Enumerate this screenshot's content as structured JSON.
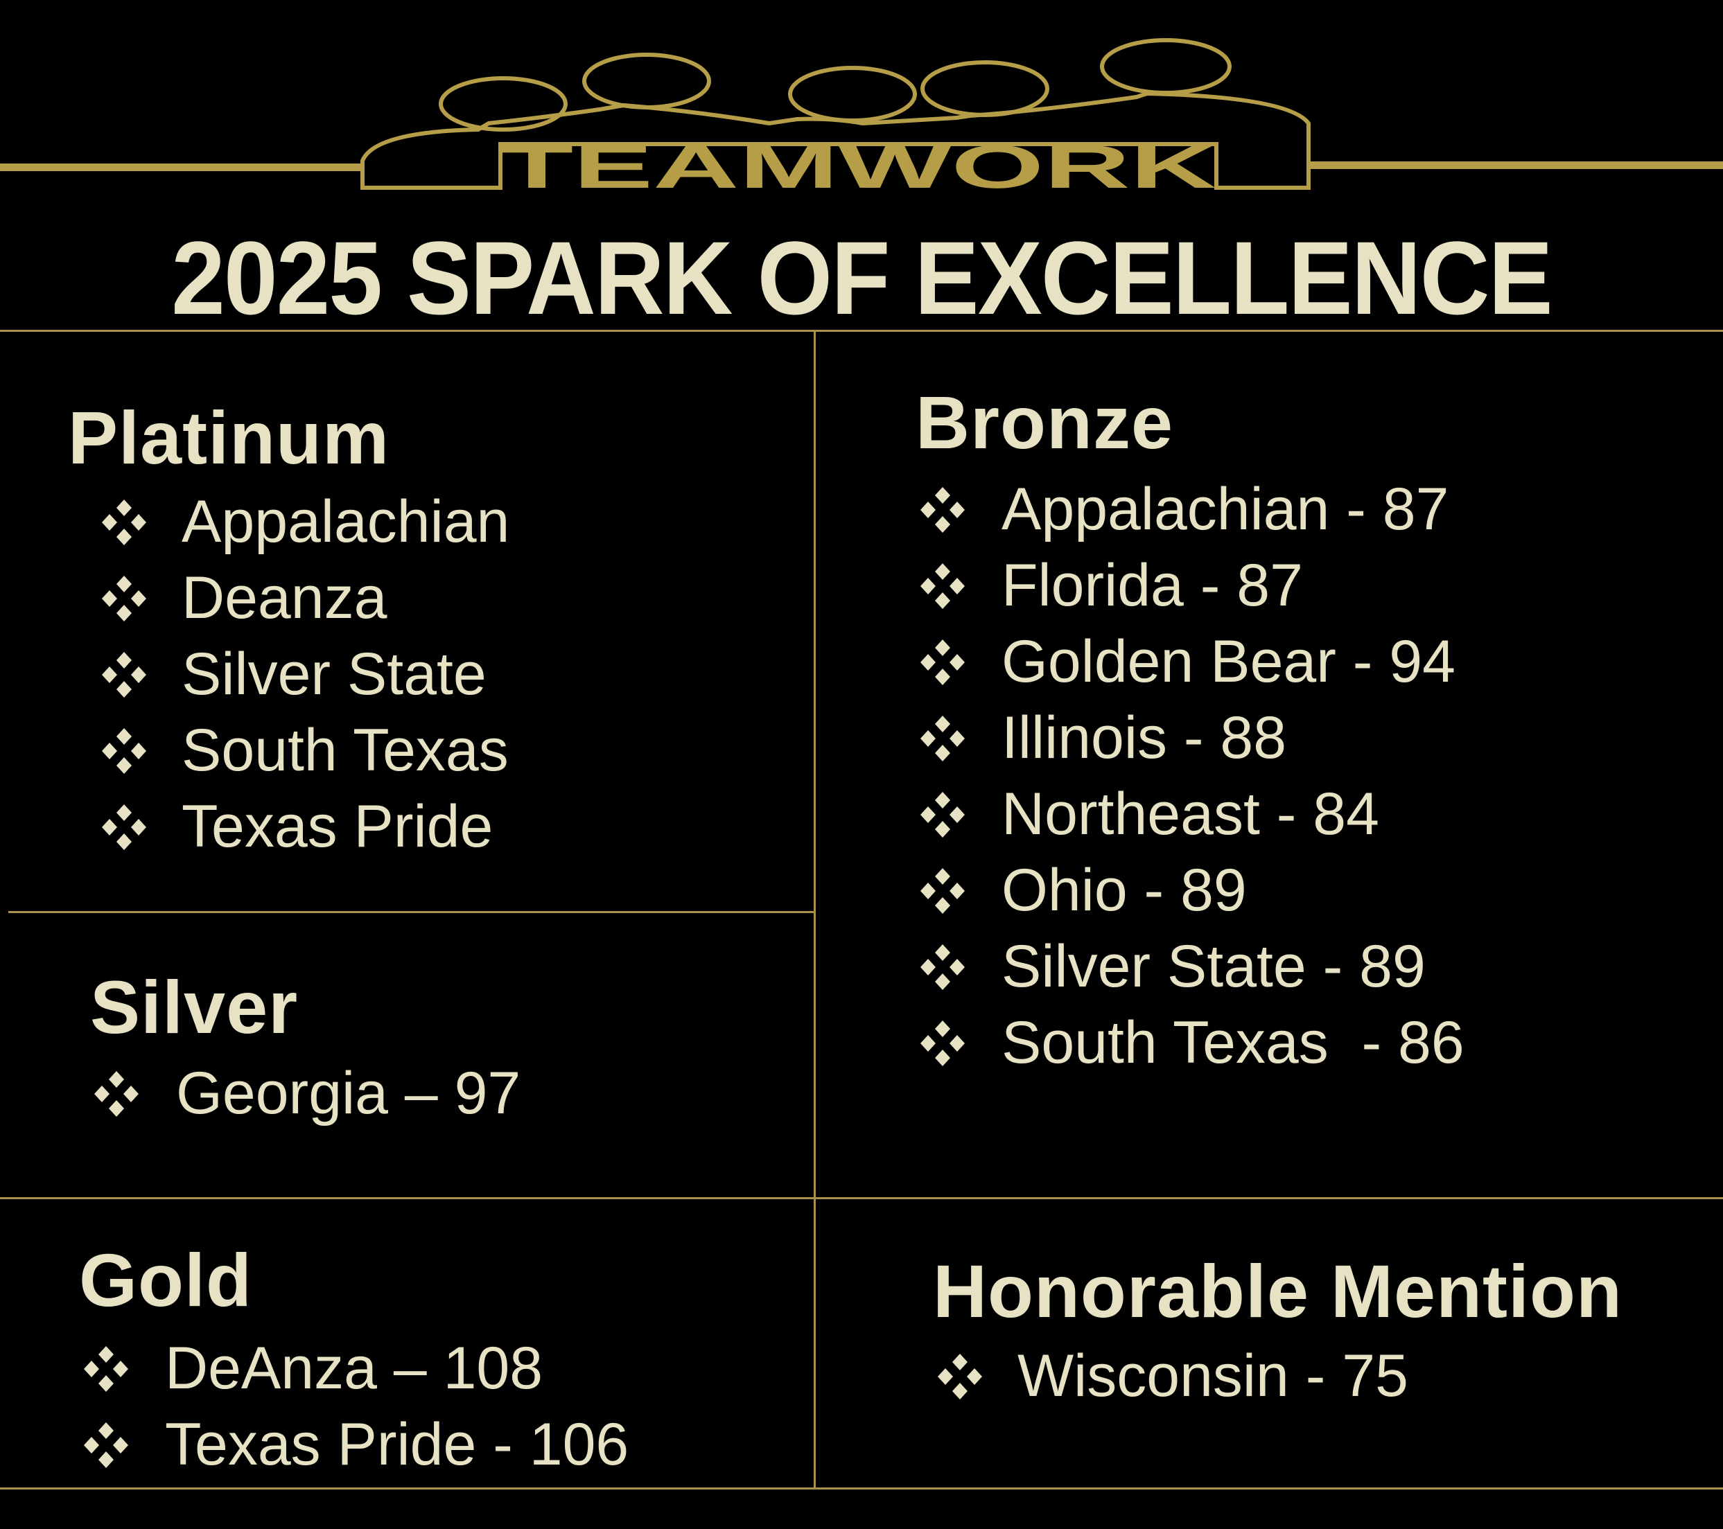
{
  "logo": {
    "text": "TEAMWORK"
  },
  "title": "2025 SPARK OF EXCELLENCE",
  "colors": {
    "text": "#e6e2c3",
    "gold": "#b59e47",
    "background": "#000000"
  },
  "sections": {
    "platinum": {
      "heading": "Platinum",
      "items": [
        "Appalachian",
        "Deanza",
        "Silver State",
        "South Texas",
        "Texas Pride"
      ]
    },
    "silver": {
      "heading": "Silver",
      "items": [
        "Georgia – 97"
      ]
    },
    "gold": {
      "heading": "Gold",
      "items": [
        "DeAnza – 108",
        "Texas Pride - 106"
      ]
    },
    "bronze": {
      "heading": "Bronze",
      "items": [
        "Appalachian - 87",
        "Florida - 87",
        "Golden Bear - 94",
        "Illinois - 88",
        "Northeast - 84",
        "Ohio - 89",
        "Silver State - 89",
        "South Texas  - 86"
      ]
    },
    "honorable": {
      "heading": "Honorable Mention",
      "items": [
        "Wisconsin - 75"
      ]
    }
  },
  "bullet_icon": "four-diamond-bullet-icon"
}
